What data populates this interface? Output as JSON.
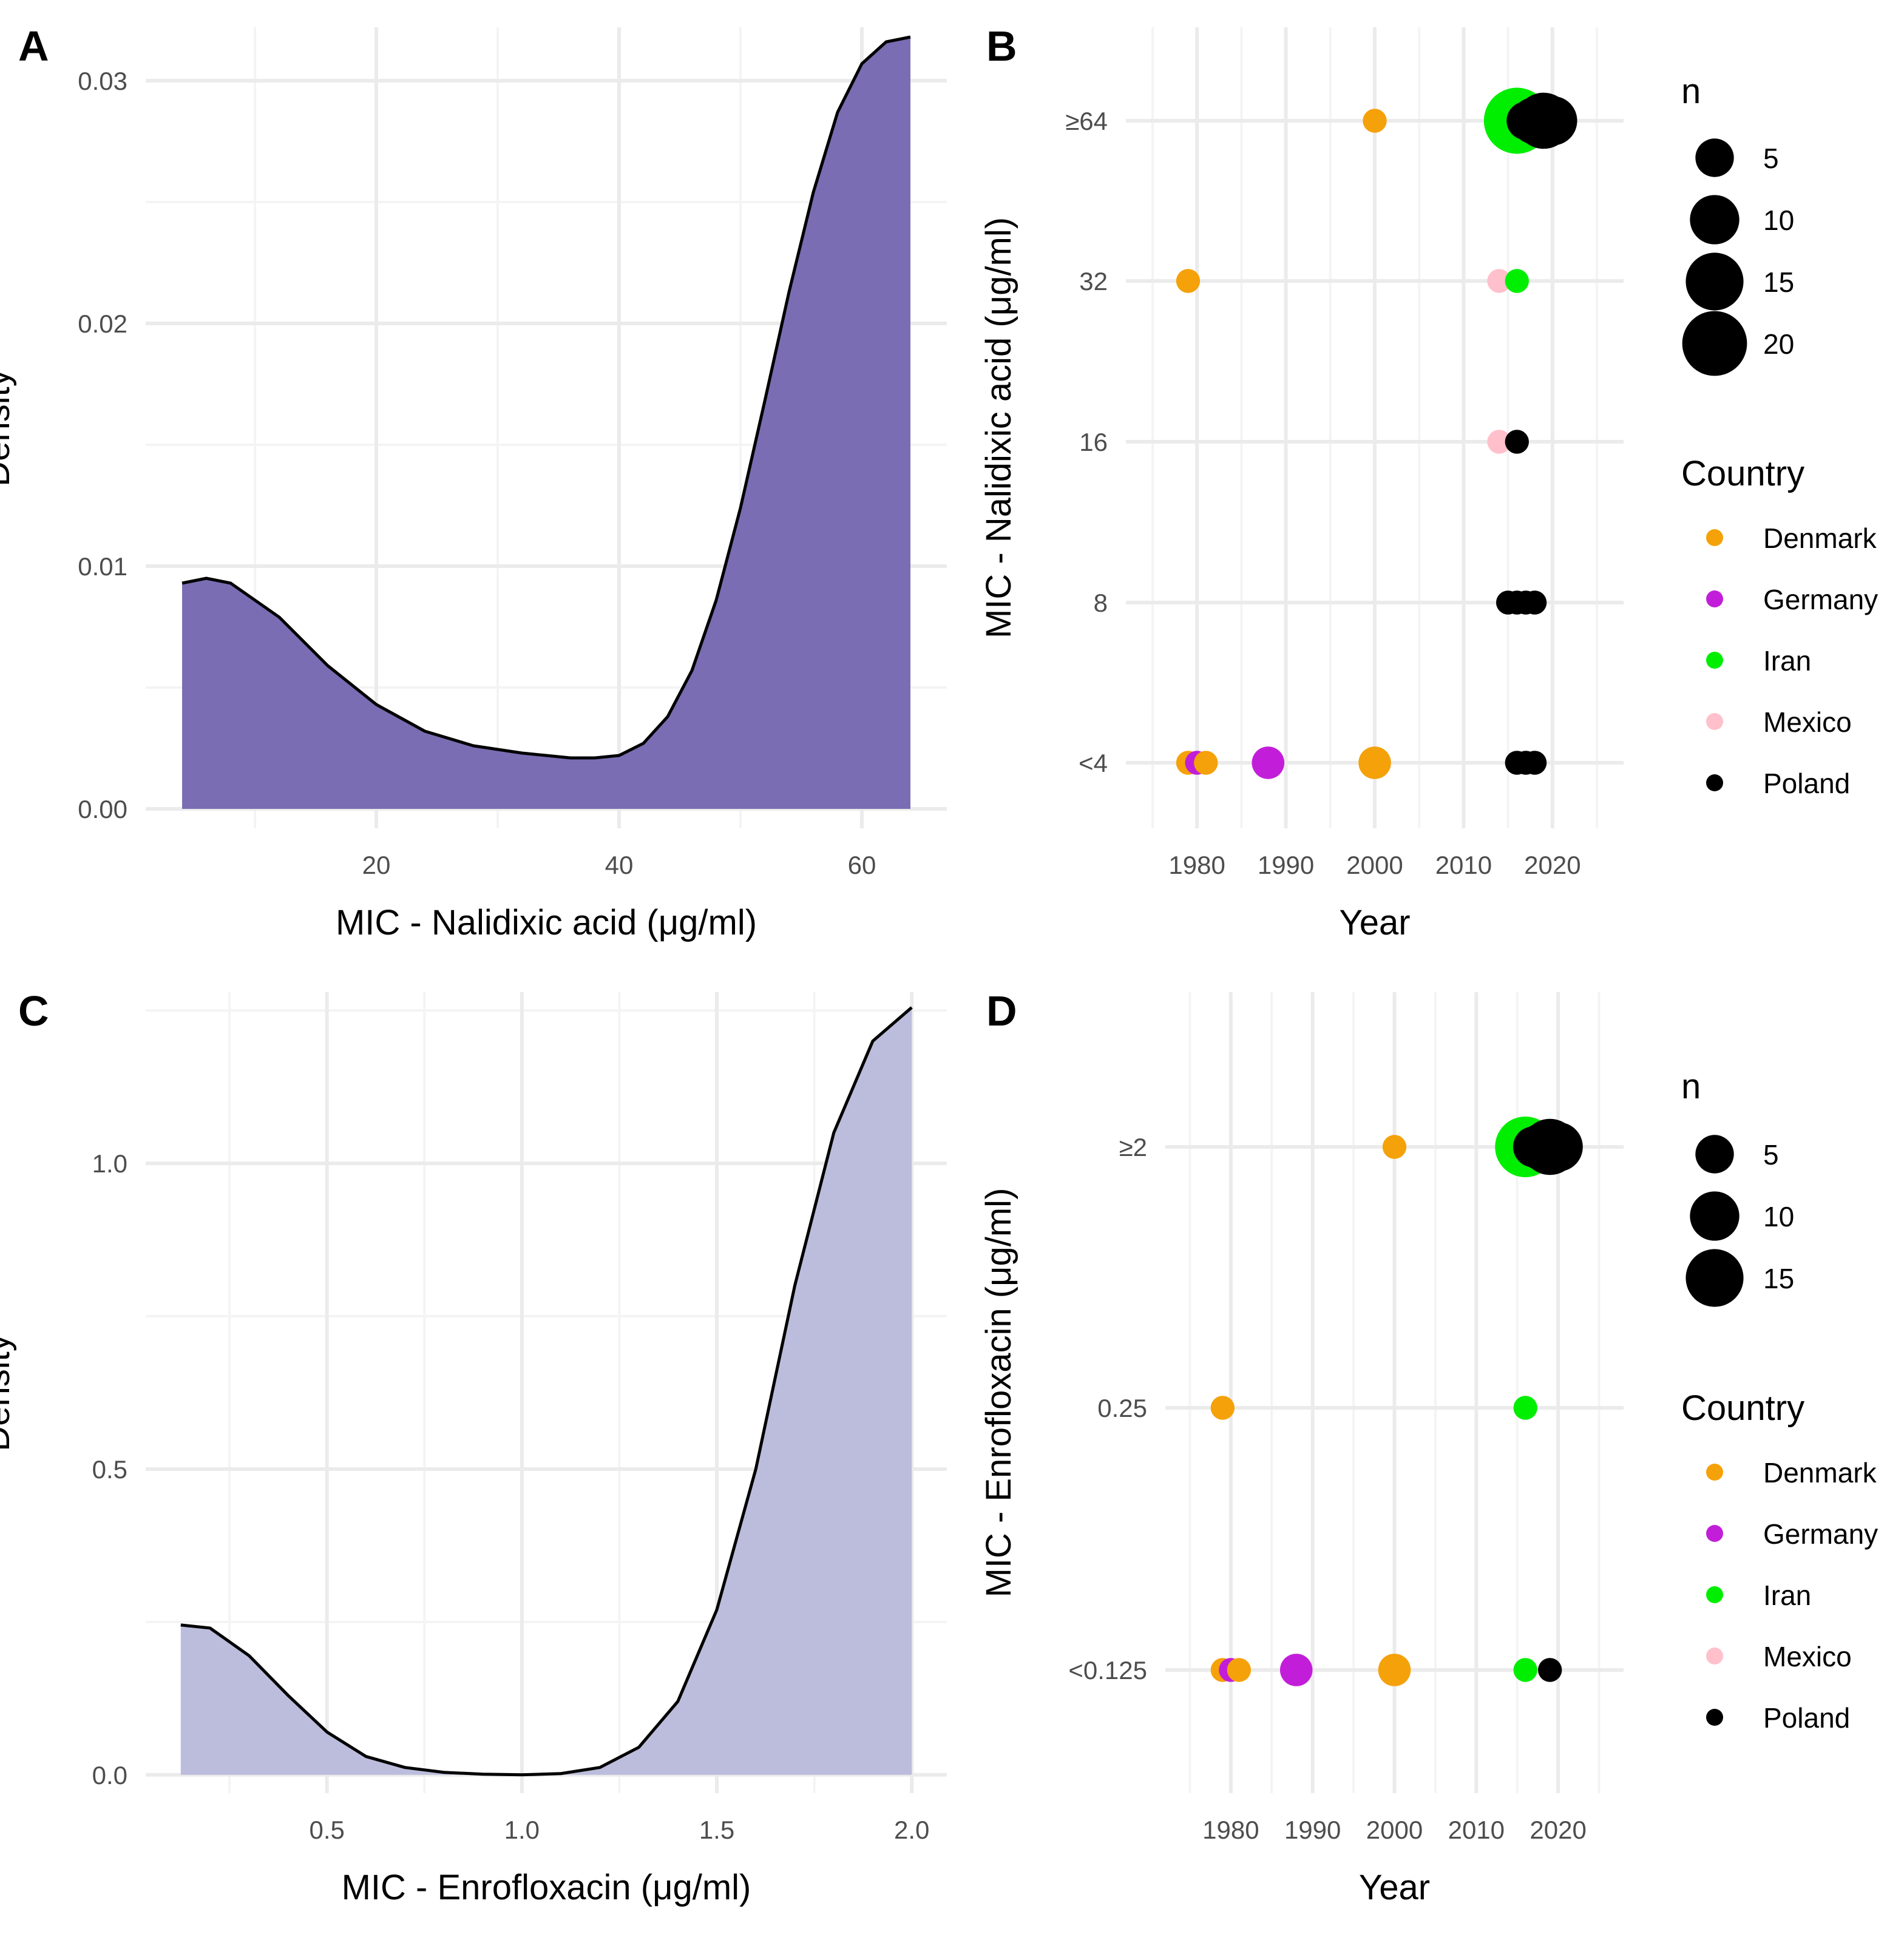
{
  "chart_data": [
    {
      "panel": "A",
      "type": "area",
      "title": "",
      "xlabel": "MIC - Nalidixic acid (μg/ml)",
      "ylabel": "Density",
      "xlim": [
        1,
        67
      ],
      "ylim": [
        -0.0008,
        0.0322
      ],
      "xticks": [
        20,
        40,
        60
      ],
      "xtick_labels": [
        "20",
        "40",
        "60"
      ],
      "yticks": [
        0,
        0.01,
        0.02,
        0.03
      ],
      "ytick_labels": [
        "0.00",
        "0.01",
        "0.02",
        "0.03"
      ],
      "fill": "#7a6db3",
      "x": [
        4,
        6,
        8,
        12,
        16,
        20,
        24,
        28,
        32,
        36,
        38,
        40,
        42,
        44,
        46,
        48,
        50,
        52,
        54,
        56,
        58,
        60,
        62,
        64
      ],
      "y": [
        0.0093,
        0.0095,
        0.0093,
        0.0079,
        0.0059,
        0.0043,
        0.0032,
        0.0026,
        0.0023,
        0.0021,
        0.0021,
        0.0022,
        0.0027,
        0.0038,
        0.0057,
        0.0086,
        0.0124,
        0.0168,
        0.0213,
        0.0254,
        0.0287,
        0.0307,
        0.0316,
        0.0318
      ]
    },
    {
      "panel": "B",
      "type": "scatter",
      "xlabel": "Year",
      "ylabel": "MIC - Nalidixic acid (μg/ml)",
      "xlim": [
        1972,
        2028
      ],
      "xticks": [
        1980,
        1990,
        2000,
        2010,
        2020
      ],
      "xtick_labels": [
        "1980",
        "1990",
        "2000",
        "2010",
        "2020"
      ],
      "categories": [
        "<4",
        "8",
        "16",
        "32",
        "≥64"
      ],
      "size_legend": {
        "title": "n",
        "values": [
          5,
          10,
          15,
          20
        ]
      },
      "color_legend": {
        "title": "Country",
        "entries": [
          "Denmark",
          "Germany",
          "Iran",
          "Mexico",
          "Poland"
        ]
      },
      "colors": {
        "Denmark": "#f5a10a",
        "Germany": "#c21ed9",
        "Iran": "#00ee00",
        "Mexico": "#ffc0cb",
        "Poland": "#000000"
      },
      "points": [
        {
          "year": 1979,
          "mic": "<4",
          "country": "Denmark",
          "n": 1
        },
        {
          "year": 1980,
          "mic": "<4",
          "country": "Germany",
          "n": 1
        },
        {
          "year": 1981,
          "mic": "<4",
          "country": "Denmark",
          "n": 1
        },
        {
          "year": 1988,
          "mic": "<4",
          "country": "Germany",
          "n": 3
        },
        {
          "year": 2000,
          "mic": "<4",
          "country": "Denmark",
          "n": 3
        },
        {
          "year": 2016,
          "mic": "<4",
          "country": "Poland",
          "n": 1
        },
        {
          "year": 2017,
          "mic": "<4",
          "country": "Poland",
          "n": 1
        },
        {
          "year": 2018,
          "mic": "<4",
          "country": "Poland",
          "n": 1
        },
        {
          "year": 2015,
          "mic": "8",
          "country": "Poland",
          "n": 1
        },
        {
          "year": 2016,
          "mic": "8",
          "country": "Poland",
          "n": 1
        },
        {
          "year": 2017,
          "mic": "8",
          "country": "Poland",
          "n": 1
        },
        {
          "year": 2018,
          "mic": "8",
          "country": "Poland",
          "n": 1
        },
        {
          "year": 2014,
          "mic": "16",
          "country": "Mexico",
          "n": 1
        },
        {
          "year": 2016,
          "mic": "16",
          "country": "Poland",
          "n": 1
        },
        {
          "year": 1979,
          "mic": "32",
          "country": "Denmark",
          "n": 1
        },
        {
          "year": 2014,
          "mic": "32",
          "country": "Mexico",
          "n": 1
        },
        {
          "year": 2016,
          "mic": "32",
          "country": "Iran",
          "n": 1
        },
        {
          "year": 2000,
          "mic": "≥64",
          "country": "Denmark",
          "n": 1
        },
        {
          "year": 2016,
          "mic": "≥64",
          "country": "Iran",
          "n": 21
        },
        {
          "year": 2017,
          "mic": "≥64",
          "country": "Poland",
          "n": 5
        },
        {
          "year": 2018,
          "mic": "≥64",
          "country": "Poland",
          "n": 9
        },
        {
          "year": 2019,
          "mic": "≥64",
          "country": "Poland",
          "n": 14
        },
        {
          "year": 2020,
          "mic": "≥64",
          "country": "Poland",
          "n": 10
        }
      ]
    },
    {
      "panel": "C",
      "type": "area",
      "xlabel": "MIC - Enrofloxacin (μg/ml)",
      "ylabel": "Density",
      "xlim": [
        0.035,
        2.09
      ],
      "ylim": [
        -0.03,
        1.28
      ],
      "xticks": [
        0.5,
        1.0,
        1.5,
        2.0
      ],
      "xtick_labels": [
        "0.5",
        "1.0",
        "1.5",
        "2.0"
      ],
      "yticks": [
        0,
        0.5,
        1.0
      ],
      "ytick_labels": [
        "0.0",
        "0.5",
        "1.0"
      ],
      "fill": "#bcbddc",
      "x": [
        0.125,
        0.2,
        0.3,
        0.4,
        0.5,
        0.6,
        0.7,
        0.8,
        0.9,
        1.0,
        1.1,
        1.2,
        1.3,
        1.4,
        1.5,
        1.6,
        1.7,
        1.8,
        1.9,
        2.0
      ],
      "y": [
        0.245,
        0.24,
        0.195,
        0.13,
        0.07,
        0.03,
        0.012,
        0.004,
        0.001,
        0.0,
        0.002,
        0.012,
        0.045,
        0.12,
        0.27,
        0.5,
        0.8,
        1.05,
        1.2,
        1.255
      ]
    },
    {
      "panel": "D",
      "type": "scatter",
      "xlabel": "Year",
      "ylabel": "MIC - Enrofloxacin (μg/ml)",
      "xlim": [
        1972,
        2028
      ],
      "xticks": [
        1980,
        1990,
        2000,
        2010,
        2020
      ],
      "xtick_labels": [
        "1980",
        "1990",
        "2000",
        "2010",
        "2020"
      ],
      "categories": [
        "<0.125",
        "0.25",
        "≥2"
      ],
      "size_legend": {
        "title": "n",
        "values": [
          5,
          10,
          15
        ]
      },
      "color_legend": {
        "title": "Country",
        "entries": [
          "Denmark",
          "Germany",
          "Iran",
          "Mexico",
          "Poland"
        ]
      },
      "colors": {
        "Denmark": "#f5a10a",
        "Germany": "#c21ed9",
        "Iran": "#00ee00",
        "Mexico": "#ffc0cb",
        "Poland": "#000000"
      },
      "points": [
        {
          "year": 1979,
          "mic": "<0.125",
          "country": "Denmark",
          "n": 1
        },
        {
          "year": 1980,
          "mic": "<0.125",
          "country": "Germany",
          "n": 1
        },
        {
          "year": 1981,
          "mic": "<0.125",
          "country": "Denmark",
          "n": 1
        },
        {
          "year": 1988,
          "mic": "<0.125",
          "country": "Germany",
          "n": 3
        },
        {
          "year": 2000,
          "mic": "<0.125",
          "country": "Denmark",
          "n": 3
        },
        {
          "year": 2016,
          "mic": "<0.125",
          "country": "Iran",
          "n": 1
        },
        {
          "year": 2019,
          "mic": "<0.125",
          "country": "Poland",
          "n": 1
        },
        {
          "year": 1979,
          "mic": "0.25",
          "country": "Denmark",
          "n": 1
        },
        {
          "year": 2016,
          "mic": "0.25",
          "country": "Iran",
          "n": 1
        },
        {
          "year": 2000,
          "mic": "≥2",
          "country": "Denmark",
          "n": 1
        },
        {
          "year": 2016,
          "mic": "≥2",
          "country": "Iran",
          "n": 17
        },
        {
          "year": 2017,
          "mic": "≥2",
          "country": "Poland",
          "n": 6
        },
        {
          "year": 2018,
          "mic": "≥2",
          "country": "Poland",
          "n": 9
        },
        {
          "year": 2019,
          "mic": "≥2",
          "country": "Poland",
          "n": 14
        },
        {
          "year": 2020,
          "mic": "≥2",
          "country": "Poland",
          "n": 10
        }
      ]
    }
  ]
}
